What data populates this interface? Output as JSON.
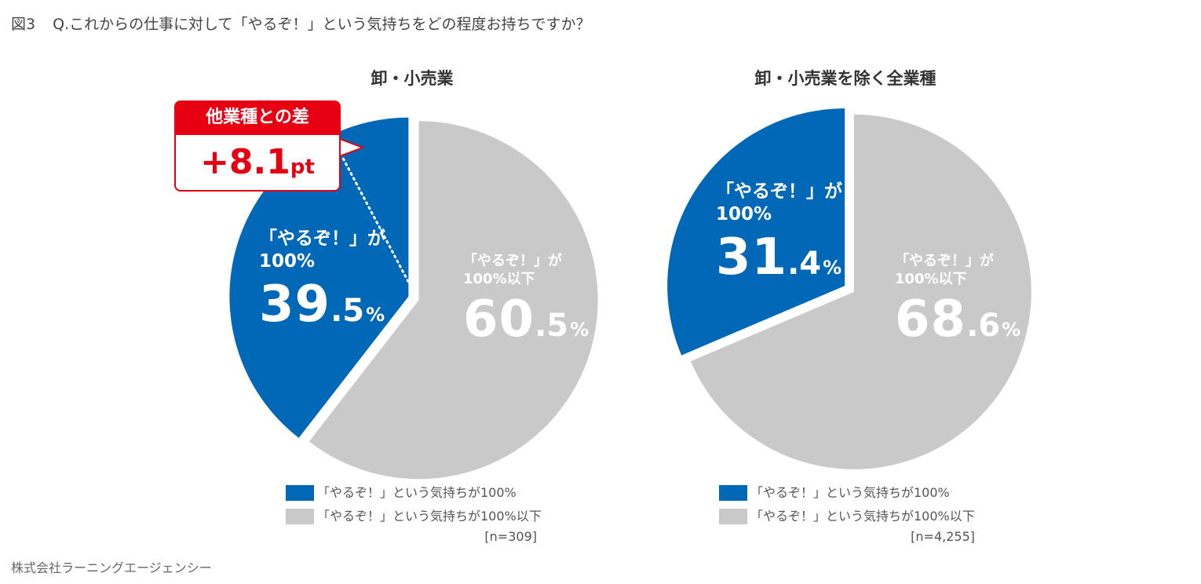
{
  "figure": {
    "number": "図3",
    "question": "Q.これからの仕事に対して「やるぞ！」という気持ちをどの程度お持ちですか？"
  },
  "colors": {
    "blue": "#0068b7",
    "gray": "#c9c9c9",
    "red": "#e60012"
  },
  "callout": {
    "head": "他業種との差",
    "value": "+8.1",
    "unit": "pt"
  },
  "chart_data": [
    {
      "type": "pie",
      "title": "卸・小売業",
      "n": "[n=309]",
      "slices": [
        {
          "label": "「やるぞ！」が100%",
          "label1": "「やるぞ！」が",
          "label2": "100%",
          "value": 39.5,
          "int": "39",
          "dec": ".5",
          "pct": "%",
          "color": "#0068b7"
        },
        {
          "label": "「やるぞ！」が100%以下",
          "label1": "「やるぞ！」が",
          "label2": "100%以下",
          "value": 60.5,
          "int": "60",
          "dec": ".5",
          "pct": "%",
          "color": "#c9c9c9"
        }
      ],
      "legend": [
        "「やるぞ！」という気持ちが100%",
        "「やるぞ！」という気持ちが100%以下"
      ]
    },
    {
      "type": "pie",
      "title": "卸・小売業を除く全業種",
      "n": "[n=4,255]",
      "slices": [
        {
          "label": "「やるぞ！」が100%",
          "label1": "「やるぞ！」が",
          "label2": "100%",
          "value": 31.4,
          "int": "31",
          "dec": ".4",
          "pct": "%",
          "color": "#0068b7"
        },
        {
          "label": "「やるぞ！」が100%以下",
          "label1": "「やるぞ！」が",
          "label2": "100%以下",
          "value": 68.6,
          "int": "68",
          "dec": ".6",
          "pct": "%",
          "color": "#c9c9c9"
        }
      ],
      "legend": [
        "「やるぞ！」という気持ちが100%",
        "「やるぞ！」という気持ちが100%以下"
      ]
    }
  ],
  "source": "株式会社ラーニングエージェンシー"
}
